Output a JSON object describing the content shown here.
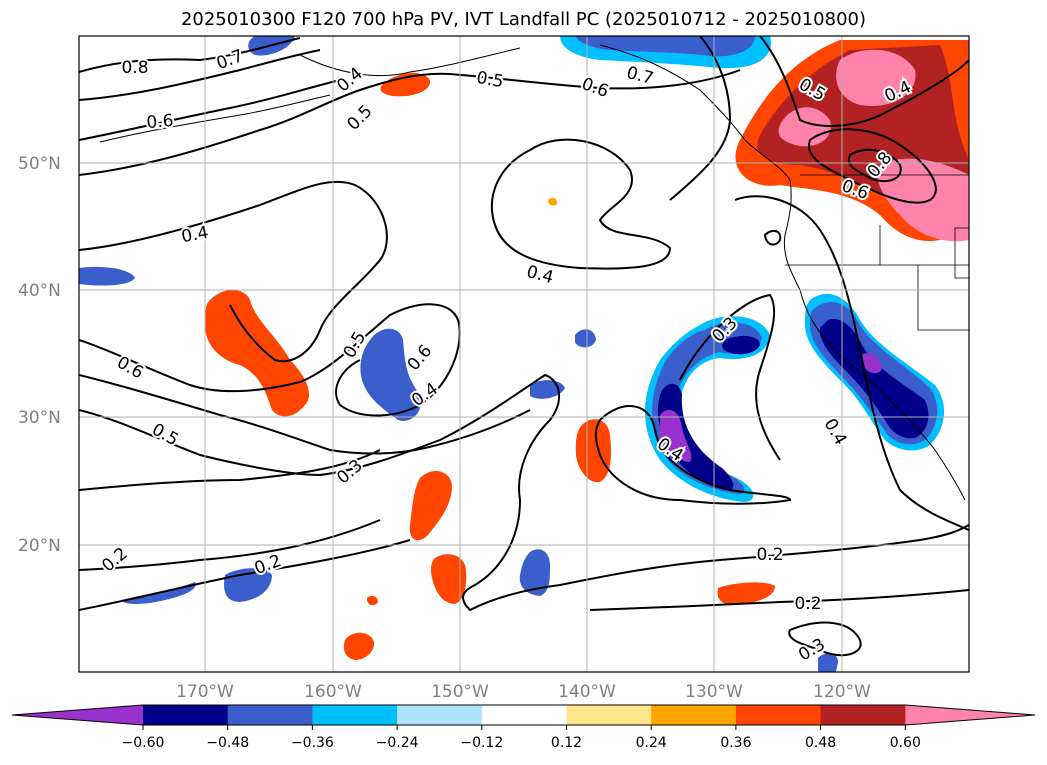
{
  "title": "2025010300 F120 700 hPa PV, IVT Landfall PC (2025010712 - 2025010800)",
  "axes": {
    "lat_labels": [
      "50°N",
      "40°N",
      "30°N",
      "20°N"
    ],
    "lon_labels": [
      "170°W",
      "160°W",
      "150°W",
      "140°W",
      "130°W",
      "120°W"
    ]
  },
  "colorbar": {
    "ticks": [
      "−0.60",
      "−0.48",
      "−0.36",
      "−0.24",
      "−0.12",
      "0.12",
      "0.24",
      "0.36",
      "0.48",
      "0.60"
    ],
    "colors": [
      "#9932cc",
      "#00008b",
      "#3a5fcd",
      "#00bfff",
      "#aee2fb",
      "#ffffff",
      "#ffe68a",
      "#ffa500",
      "#ff4500",
      "#b22222",
      "#ff82ab"
    ]
  },
  "contour_labels": [
    {
      "text": "0.8"
    },
    {
      "text": "0.7"
    },
    {
      "text": "0.6"
    },
    {
      "text": "0.5"
    },
    {
      "text": "0.6"
    },
    {
      "text": "0.7"
    },
    {
      "text": "0.5"
    },
    {
      "text": "0.4"
    },
    {
      "text": "0.4"
    },
    {
      "text": "0.4"
    },
    {
      "text": "0.5"
    },
    {
      "text": "0.6"
    },
    {
      "text": "0.4"
    },
    {
      "text": "0.6"
    },
    {
      "text": "0.5"
    },
    {
      "text": "0.3"
    },
    {
      "text": "0.3"
    },
    {
      "text": "0.4"
    },
    {
      "text": "0.4"
    },
    {
      "text": "0.2"
    },
    {
      "text": "0.2"
    },
    {
      "text": "0.2"
    },
    {
      "text": "0.2"
    },
    {
      "text": "0.3"
    },
    {
      "text": "0.5"
    },
    {
      "text": "0.4"
    },
    {
      "text": "0.8"
    },
    {
      "text": "0.6"
    }
  ]
}
